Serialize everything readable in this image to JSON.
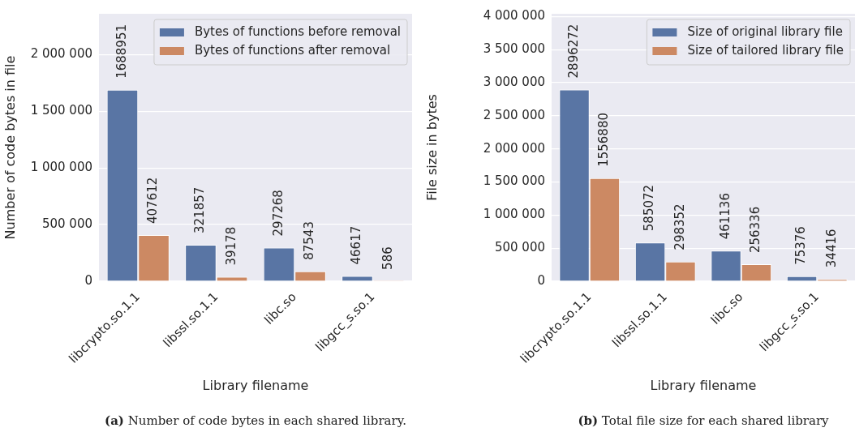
{
  "chart_data": [
    {
      "type": "bar",
      "xlabel": "Library filename",
      "ylabel": "Number of code bytes in file",
      "categories": [
        "libcrypto.so.1.1",
        "libssl.so.1.1",
        "libc.so",
        "libgcc_s.so.1"
      ],
      "series": [
        {
          "name": "Bytes of functions before removal",
          "color": "#5975a4",
          "values": [
            1688951,
            321857,
            297268,
            46617
          ]
        },
        {
          "name": "Bytes of functions after removal",
          "color": "#cc8963",
          "values": [
            407612,
            39178,
            87543,
            586
          ]
        }
      ],
      "ylim": [
        0,
        2360000
      ],
      "yticks": [
        {
          "value": 0,
          "label": "0"
        },
        {
          "value": 500000,
          "label": "500 000"
        },
        {
          "value": 1000000,
          "label": "1 000 000"
        },
        {
          "value": 1500000,
          "label": "1 500 000"
        },
        {
          "value": 2000000,
          "label": "2 000 000"
        }
      ],
      "grid": "y",
      "legend": "top right",
      "data_labels": true,
      "annotations": [
        "(a) Number of code bytes in each shared library."
      ]
    },
    {
      "type": "bar",
      "xlabel": "Library filename",
      "ylabel": "File size in bytes",
      "categories": [
        "libcrypto.so.1.1",
        "libssl.so.1.1",
        "libc.so",
        "libgcc_s.so.1"
      ],
      "series": [
        {
          "name": "Size of original library file",
          "color": "#5975a4",
          "values": [
            2896272,
            585072,
            461136,
            75376
          ]
        },
        {
          "name": "Size of tailored library file",
          "color": "#cc8963",
          "values": [
            1556880,
            298352,
            256336,
            34416
          ]
        }
      ],
      "ylim": [
        0,
        4040000
      ],
      "yticks": [
        {
          "value": 0,
          "label": "0"
        },
        {
          "value": 500000,
          "label": "500 000"
        },
        {
          "value": 1000000,
          "label": "1 000 000"
        },
        {
          "value": 1500000,
          "label": "1 500 000"
        },
        {
          "value": 2000000,
          "label": "2 000 000"
        },
        {
          "value": 2500000,
          "label": "2 500 000"
        },
        {
          "value": 3000000,
          "label": "3 000 000"
        },
        {
          "value": 3500000,
          "label": "3 500 000"
        },
        {
          "value": 4000000,
          "label": "4 000 000"
        }
      ],
      "grid": "y",
      "legend": "top right",
      "data_labels": true,
      "annotations": [
        "(b) Total file size for each shared library"
      ]
    }
  ]
}
